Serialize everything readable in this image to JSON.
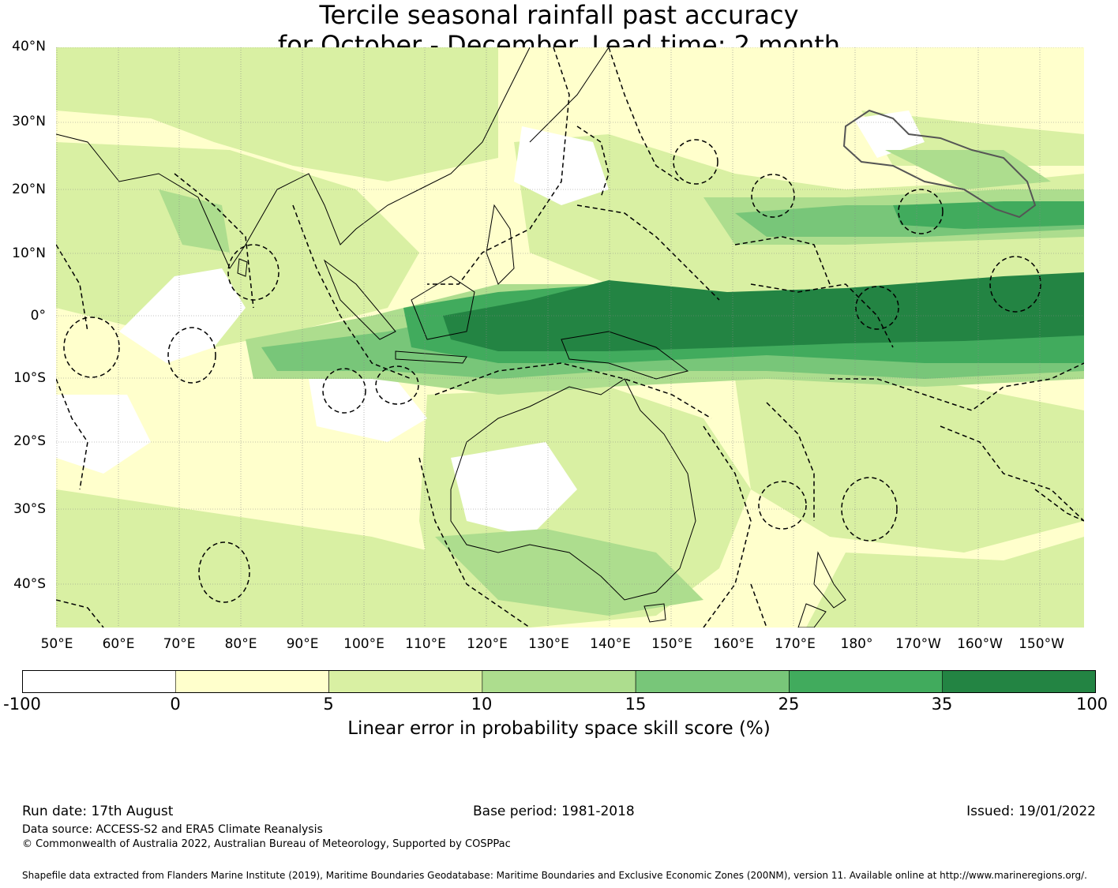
{
  "title": {
    "line1": "Tercile seasonal rainfall past accuracy",
    "line2": "for October - December. Lead time: 2 month"
  },
  "map": {
    "latitude_labels": [
      "40°N",
      "30°N",
      "20°N",
      "10°N",
      "0°",
      "10°S",
      "20°S",
      "30°S",
      "40°S"
    ],
    "longitude_labels": [
      "50°E",
      "60°E",
      "70°E",
      "80°E",
      "90°E",
      "100°E",
      "110°E",
      "120°E",
      "130°E",
      "140°E",
      "150°E",
      "160°E",
      "170°E",
      "180°",
      "170°W",
      "160°W",
      "150°W"
    ],
    "land_color": "#ffffff",
    "ocean_base_color": "#ffffcc"
  },
  "colorbar": {
    "ticks": [
      "-100",
      "0",
      "5",
      "10",
      "15",
      "25",
      "35",
      "100"
    ],
    "colors": [
      "#ffffff",
      "#ffffcc",
      "#d9f0a3",
      "#addd8e",
      "#78c679",
      "#41ab5d",
      "#238443"
    ],
    "label": "Linear error in probability space skill score (%)"
  },
  "footer": {
    "run_date": "Run date: 17th August",
    "base_period": "Base period: 1981-2018",
    "issued": "Issued: 19/01/2022",
    "data_source": "Data source: ACCESS-S2 and ERA5 Climate Reanalysis",
    "copyright": "© Commonwealth of Australia 2022, Australian Bureau of Meteorology, Supported by COSPPac",
    "shapefile": "Shapefile data extracted from Flanders Marine Institute (2019), Maritime Boundaries Geodatabase: Maritime Boundaries and Exclusive Economic Zones (200NM), version 11. Available online at http://www.marineregions.org/."
  }
}
